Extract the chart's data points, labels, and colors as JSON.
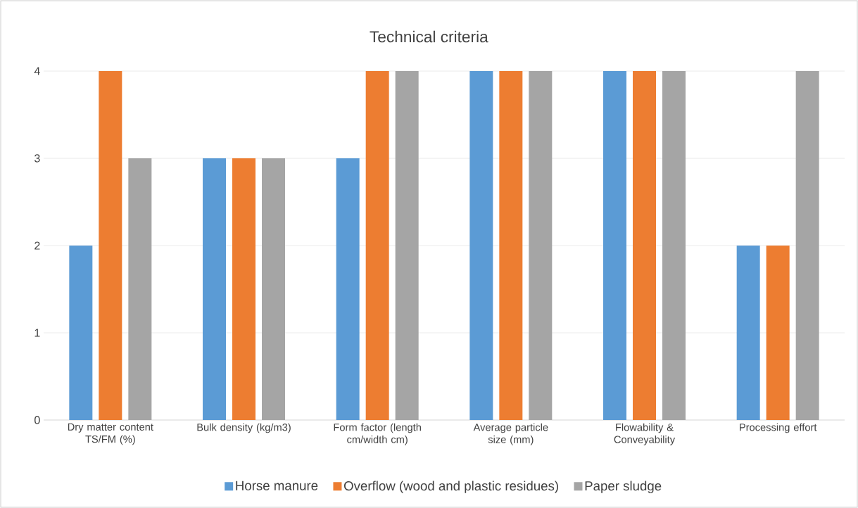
{
  "chart_data": {
    "type": "bar",
    "title": "Technical criteria",
    "categories": [
      "Dry matter content TS/FM (%)",
      "Bulk density (kg/m3)",
      "Form factor (length cm/width cm)",
      "Average particle size (mm)",
      "Flowability & Conveyability",
      "Processing effort"
    ],
    "series": [
      {
        "name": "Horse manure",
        "color": "#5b9bd5",
        "values": [
          2,
          3,
          3,
          4,
          4,
          2
        ]
      },
      {
        "name": "Overflow (wood and plastic residues)",
        "color": "#ed7d31",
        "values": [
          4,
          3,
          4,
          4,
          4,
          2
        ]
      },
      {
        "name": "Paper sludge",
        "color": "#a5a5a5",
        "values": [
          3,
          3,
          4,
          4,
          4,
          4
        ]
      }
    ],
    "ylim": [
      0,
      4
    ],
    "yticks": [
      0,
      1,
      2,
      3,
      4
    ],
    "grid": "y",
    "legend": "bottom"
  }
}
